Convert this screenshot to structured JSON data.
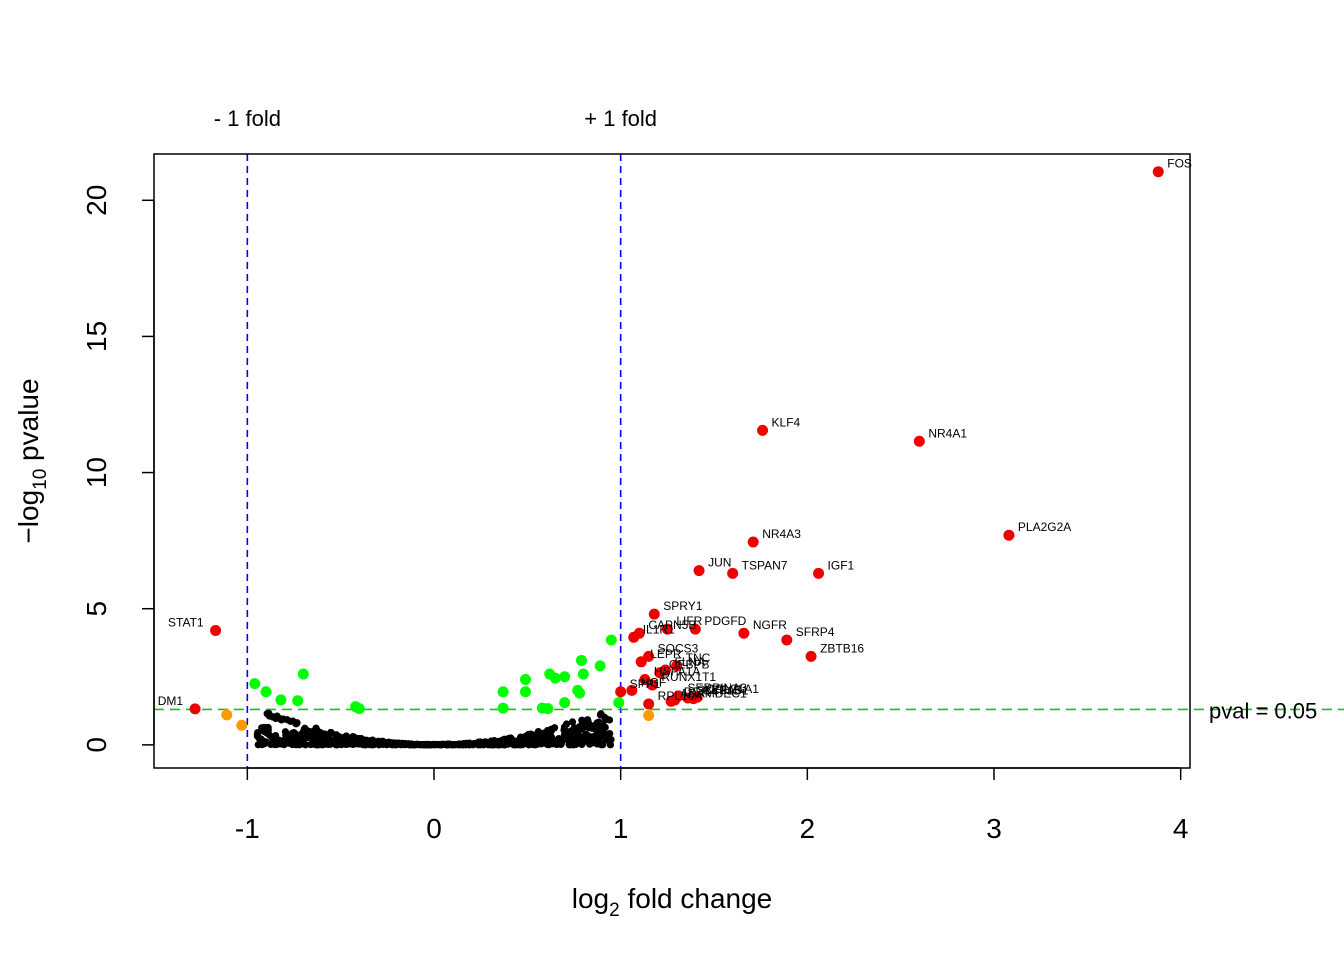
{
  "chart_data": {
    "type": "scatter",
    "xlabel": "log2 fold change",
    "ylabel": "-log10 pvalue",
    "xlim": [
      -1.5,
      4.05
    ],
    "ylim": [
      -0.85,
      21.7
    ],
    "x_ticks": [
      -1,
      0,
      1,
      2,
      3,
      4
    ],
    "y_ticks": [
      0,
      5,
      10,
      15,
      20
    ],
    "vlines": [
      {
        "x": -1,
        "label": "- 1 fold",
        "color": "#0000ff"
      },
      {
        "x": 1,
        "label": "+ 1 fold",
        "color": "#0000ff"
      }
    ],
    "hline": {
      "y": 1.301,
      "label": "pval = 0.05",
      "color": "#22bb22"
    },
    "colors": {
      "ns": "#000000",
      "sig_small_fc": "#00ff00",
      "fc_only": "#ff9900",
      "both": "#ee0000",
      "guide_blue": "#0000ff",
      "guide_green": "#22bb22"
    },
    "labeled_points": [
      {
        "gene": "FOS",
        "x": 3.88,
        "y": 21.05
      },
      {
        "gene": "KLF4",
        "x": 1.76,
        "y": 11.55
      },
      {
        "gene": "NR4A1",
        "x": 2.6,
        "y": 11.15
      },
      {
        "gene": "PLA2G2A",
        "x": 3.08,
        "y": 7.7
      },
      {
        "gene": "NR4A3",
        "x": 1.71,
        "y": 7.45
      },
      {
        "gene": "JUN",
        "x": 1.42,
        "y": 6.4
      },
      {
        "gene": "TSPAN7",
        "x": 1.6,
        "y": 6.3
      },
      {
        "gene": "IGF1",
        "x": 2.06,
        "y": 6.3
      },
      {
        "gene": "SPRY1",
        "x": 1.18,
        "y": 4.8
      },
      {
        "gene": "STAT1",
        "x": -1.17,
        "y": 4.2
      },
      {
        "gene": "LIFR",
        "x": 1.25,
        "y": 4.25
      },
      {
        "gene": "PDGFD",
        "x": 1.4,
        "y": 4.25
      },
      {
        "gene": "NGFR",
        "x": 1.66,
        "y": 4.1
      },
      {
        "gene": "CAPN5B",
        "x": 1.1,
        "y": 4.1
      },
      {
        "gene": "IL1R1",
        "x": 1.07,
        "y": 3.95
      },
      {
        "gene": "SFRP4",
        "x": 1.89,
        "y": 3.85
      },
      {
        "gene": "ZBTB16",
        "x": 2.02,
        "y": 3.25
      },
      {
        "gene": "SOCS3",
        "x": 1.15,
        "y": 3.25
      },
      {
        "gene": "LEPR",
        "x": 1.11,
        "y": 3.05
      },
      {
        "gene": "TNC",
        "x": 1.3,
        "y": 2.9
      },
      {
        "gene": "FLNA",
        "x": 1.24,
        "y": 2.75
      },
      {
        "gene": "CEBPB",
        "x": 1.21,
        "y": 2.65
      },
      {
        "gene": "HSPA1A",
        "x": 1.13,
        "y": 2.4
      },
      {
        "gene": "RUNX1T1",
        "x": 1.17,
        "y": 2.2
      },
      {
        "gene": "HGF",
        "x": 1.06,
        "y": 2.0
      },
      {
        "gene": "SPP1",
        "x": 1.0,
        "y": 1.95
      },
      {
        "gene": "SERPINA3",
        "x": 1.31,
        "y": 1.8
      },
      {
        "gene": "COL21A1",
        "x": 1.41,
        "y": 1.75
      },
      {
        "gene": "CYP1B1",
        "x": 1.39,
        "y": 1.7
      },
      {
        "gene": "DDIT4",
        "x": 1.29,
        "y": 1.65
      },
      {
        "gene": "RPL10A",
        "x": 1.15,
        "y": 1.5
      },
      {
        "gene": "ADAMDEC1",
        "x": 1.27,
        "y": 1.6
      },
      {
        "gene": "SLC2A3",
        "x": 1.36,
        "y": 1.72
      },
      {
        "gene": "DM1",
        "x": -1.28,
        "y": 1.32
      }
    ],
    "orange_points": [
      {
        "x": -1.11,
        "y": 1.1
      },
      {
        "x": -1.03,
        "y": 0.72
      },
      {
        "x": 1.15,
        "y": 1.08
      }
    ],
    "green_points": [
      {
        "x": -0.96,
        "y": 2.25
      },
      {
        "x": -0.9,
        "y": 1.95
      },
      {
        "x": -0.82,
        "y": 1.65
      },
      {
        "x": -0.73,
        "y": 1.62
      },
      {
        "x": -0.7,
        "y": 2.6
      },
      {
        "x": -0.42,
        "y": 1.4
      },
      {
        "x": -0.4,
        "y": 1.33
      },
      {
        "x": 0.37,
        "y": 1.95
      },
      {
        "x": 0.37,
        "y": 1.35
      },
      {
        "x": 0.49,
        "y": 2.4
      },
      {
        "x": 0.49,
        "y": 1.95
      },
      {
        "x": 0.58,
        "y": 1.35
      },
      {
        "x": 0.61,
        "y": 1.33
      },
      {
        "x": 0.62,
        "y": 2.6
      },
      {
        "x": 0.65,
        "y": 2.45
      },
      {
        "x": 0.7,
        "y": 2.5
      },
      {
        "x": 0.7,
        "y": 1.55
      },
      {
        "x": 0.77,
        "y": 2.0
      },
      {
        "x": 0.78,
        "y": 1.9
      },
      {
        "x": 0.79,
        "y": 3.1
      },
      {
        "x": 0.8,
        "y": 2.6
      },
      {
        "x": 0.89,
        "y": 2.9
      },
      {
        "x": 0.95,
        "y": 3.85
      },
      {
        "x": 0.99,
        "y": 1.55
      }
    ],
    "ns_point_count": 700
  }
}
